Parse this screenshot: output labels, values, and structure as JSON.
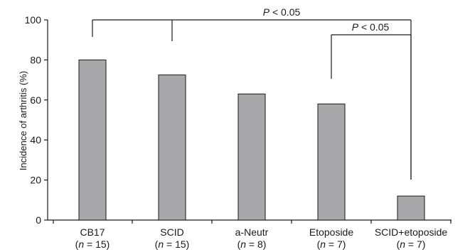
{
  "chart_data": {
    "type": "bar",
    "title": "",
    "xlabel": "",
    "ylabel": "Incidence of arthritis (%)",
    "ylim": [
      0,
      100
    ],
    "yticks": [
      "0",
      "20",
      "40",
      "60",
      "80",
      "100"
    ],
    "categories": [
      "CB17",
      "SCID",
      "a-Neutr",
      "Etoposide",
      "SCID+etoposide"
    ],
    "group_sizes": [
      "15",
      "15",
      "8",
      "7",
      "7"
    ],
    "n_prefix": "n",
    "values": [
      80,
      72.5,
      63,
      58,
      12
    ],
    "grid": false,
    "bar_color": "#a8a8ab",
    "bar_edge_color": "#1a1a1a",
    "significance": [
      {
        "between": [
          "CB17",
          "SCID+etoposide"
        ],
        "also_linked": [
          "SCID"
        ],
        "p_symbol": "P",
        "text": " < 0.05"
      },
      {
        "between": [
          "Etoposide",
          "SCID+etoposide"
        ],
        "also_linked": [],
        "p_symbol": "P",
        "text": " < 0.05"
      }
    ]
  }
}
